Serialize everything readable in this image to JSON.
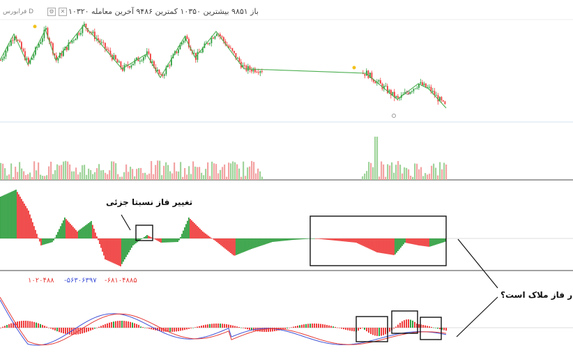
{
  "header": {
    "symbol": "فرابورس D",
    "open_label": "باز",
    "open_value": "۹۸۵۱",
    "high_label": "بیشترین",
    "high_value": "۱۰۳۵۰",
    "low_label": "کمترین",
    "low_value": "۹۴۸۶",
    "last_label": "آخرین معامله",
    "last_value": "۱۰۳۲۰"
  },
  "macd_values": {
    "v1": "۱۰۲۰۴۸۸",
    "v2": "-۵۶۳۰۶۳۹۷",
    "v3": "-۶۸۱۰۴۸۸۵"
  },
  "annotations": {
    "phase_change": "تغییر فاز نسبتا جزئی",
    "question": "ر فاز ملاک است؟"
  },
  "colors": {
    "up": "#2e9e3e",
    "down": "#ef3b3b",
    "zigzag": "#4caf50",
    "macd_line": "#3f51d6",
    "signal_line": "#e53935"
  },
  "chart_data": [
    {
      "type": "candlestick",
      "panel": "price",
      "note": "approximate price path with zigzag overlay",
      "zigzag": [
        [
          0,
          0.55
        ],
        [
          8,
          0.85
        ],
        [
          16,
          0.5
        ],
        [
          26,
          0.9
        ],
        [
          32,
          0.55
        ],
        [
          48,
          0.95
        ],
        [
          56,
          0.78
        ],
        [
          70,
          0.45
        ],
        [
          84,
          0.62
        ],
        [
          92,
          0.35
        ],
        [
          106,
          0.82
        ],
        [
          112,
          0.58
        ],
        [
          124,
          0.88
        ],
        [
          140,
          0.45
        ],
        [
          210,
          0.4
        ],
        [
          228,
          0.1
        ],
        [
          240,
          0.28
        ],
        [
          246,
          0.22
        ],
        [
          256,
          0.0
        ]
      ]
    },
    {
      "type": "bar",
      "panel": "volume"
    },
    {
      "type": "bar",
      "panel": "histogram"
    },
    {
      "type": "line",
      "panel": "macd",
      "series": [
        {
          "values": []
        },
        {
          "values": []
        }
      ]
    }
  ]
}
